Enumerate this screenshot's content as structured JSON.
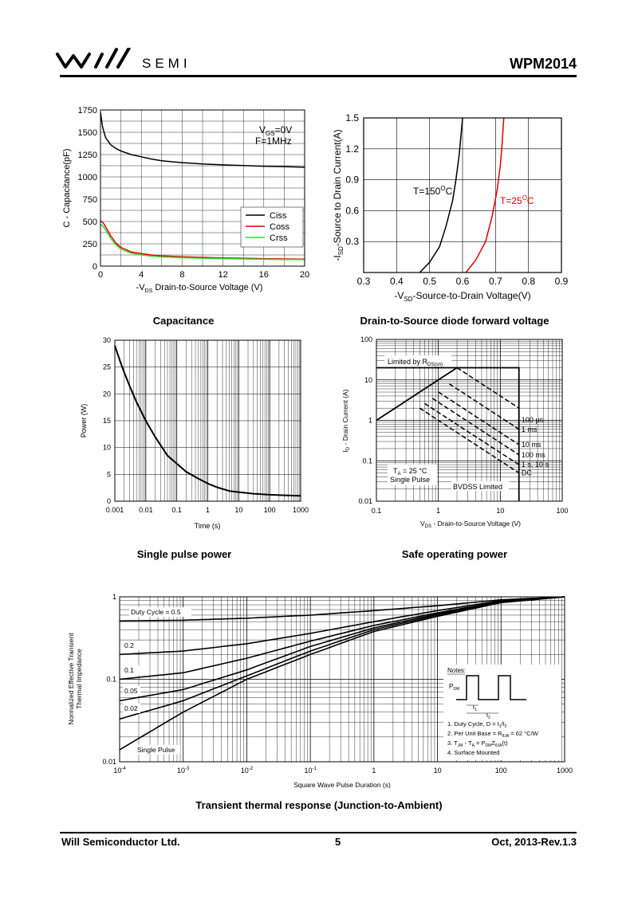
{
  "header": {
    "brand": "SEMI",
    "model": "WPM2014"
  },
  "footer": {
    "company": "Will Semiconductor Ltd.",
    "page": "5",
    "date": "Oct, 2013-Rev.1.3"
  },
  "chart_data": [
    {
      "id": "capacitance",
      "type": "line",
      "caption": "Capacitance",
      "xlabel": "-V_DS Drain-to-Source Voltage (V)",
      "ylabel": "C - Capacitance(pF)",
      "xlim": [
        0,
        20
      ],
      "ylim": [
        0,
        1750
      ],
      "xticks": [
        0,
        4,
        8,
        12,
        16,
        20
      ],
      "yticks": [
        0,
        250,
        500,
        750,
        1000,
        1250,
        1500,
        1750
      ],
      "annotations": [
        "V_GS=0V",
        "F=1MHz"
      ],
      "legend": "bottom-right",
      "series": [
        {
          "name": "Ciss",
          "color": "#000000",
          "x": [
            0,
            0.2,
            0.5,
            1,
            1.5,
            2,
            3,
            4,
            5,
            6,
            7,
            8,
            10,
            12,
            14,
            16,
            18,
            20
          ],
          "y": [
            1720,
            1560,
            1440,
            1360,
            1320,
            1290,
            1250,
            1225,
            1200,
            1180,
            1170,
            1160,
            1145,
            1135,
            1128,
            1120,
            1115,
            1108
          ]
        },
        {
          "name": "Coss",
          "color": "#e00000",
          "x": [
            0,
            0.3,
            0.6,
            1,
            1.5,
            2,
            3,
            4,
            5,
            6,
            8,
            10,
            12,
            14,
            16,
            18,
            20
          ],
          "y": [
            510,
            480,
            420,
            340,
            260,
            210,
            160,
            140,
            125,
            115,
            105,
            98,
            92,
            88,
            84,
            80,
            78
          ]
        },
        {
          "name": "Crss",
          "color": "#33dd33",
          "x": [
            0,
            0.3,
            0.6,
            1,
            1.5,
            2,
            3,
            4,
            5,
            6,
            8,
            10,
            12,
            14,
            16,
            18,
            20
          ],
          "y": [
            470,
            440,
            385,
            310,
            240,
            190,
            145,
            125,
            112,
            104,
            95,
            88,
            84,
            80,
            77,
            74,
            72
          ]
        }
      ]
    },
    {
      "id": "diode",
      "type": "line",
      "caption": "Drain-to-Source diode forward voltage",
      "xlabel": "-V_SD-Source-to-Drain Voltage(V)",
      "ylabel": "-I_SD-Source to Drain Current(A)",
      "xlim": [
        0.3,
        0.9
      ],
      "ylim": [
        0,
        1.5
      ],
      "xticks": [
        0.3,
        0.4,
        0.5,
        0.6,
        0.7,
        0.8,
        0.9
      ],
      "yticks": [
        0.3,
        0.6,
        0.9,
        1.2,
        1.5
      ],
      "series": [
        {
          "name": "T=150°C",
          "color": "#000000",
          "x": [
            0.47,
            0.5,
            0.53,
            0.55,
            0.57,
            0.58,
            0.59,
            0.6
          ],
          "y": [
            0,
            0.1,
            0.25,
            0.45,
            0.7,
            0.9,
            1.15,
            1.5
          ]
        },
        {
          "name": "T=25°C",
          "color": "#e00000",
          "x": [
            0.61,
            0.64,
            0.67,
            0.69,
            0.705,
            0.715,
            0.72,
            0.725
          ],
          "y": [
            0,
            0.12,
            0.3,
            0.55,
            0.8,
            1.05,
            1.25,
            1.5
          ]
        }
      ],
      "labels": [
        "T=150",
        "T=25",
        "O",
        "C"
      ]
    },
    {
      "id": "single-pulse",
      "type": "line",
      "caption": "Single pulse power",
      "xlabel": "Time (s)",
      "ylabel": "Power (W)",
      "xlim": [
        0.001,
        1000
      ],
      "xscale": "log",
      "ylim": [
        0,
        30
      ],
      "xticks": [
        "0.001",
        "0.01",
        "0.1",
        "1",
        "10",
        "100",
        "1000"
      ],
      "yticks": [
        0,
        5,
        10,
        15,
        20,
        25,
        30
      ],
      "series": [
        {
          "name": "Power",
          "color": "#000000",
          "x": [
            0.001,
            0.0015,
            0.002,
            0.003,
            0.005,
            0.01,
            0.02,
            0.05,
            0.1,
            0.2,
            0.5,
            1,
            2,
            5,
            10,
            30,
            100,
            300,
            1000
          ],
          "y": [
            29,
            26,
            24,
            21.5,
            18.5,
            15,
            12,
            8.5,
            7,
            5.5,
            4.2,
            3.3,
            2.6,
            1.9,
            1.7,
            1.4,
            1.2,
            1.1,
            1.0
          ]
        }
      ]
    },
    {
      "id": "soa",
      "type": "line",
      "caption": "Safe operating power",
      "xlabel": "V_DS - Drain-to-Source Voltage (V)",
      "ylabel": "I_D - Drain Current (A)",
      "xlim": [
        0.1,
        100
      ],
      "ylim": [
        0.01,
        100
      ],
      "xscale": "log",
      "yscale": "log",
      "xticks": [
        "0.1",
        "1",
        "10",
        "100"
      ],
      "yticks": [
        "0.01",
        "0.1",
        "1",
        "10",
        "100"
      ],
      "annotations": [
        "Limited by R_DS(on)",
        "T_A = 25 °C",
        "Single Pulse",
        "BVDSS Limited"
      ],
      "series": [
        {
          "name": "100 µs",
          "x": [
            2,
            20
          ],
          "y": [
            20,
            2
          ]
        },
        {
          "name": "1 ms",
          "x": [
            1.5,
            20
          ],
          "y": [
            8,
            0.6
          ]
        },
        {
          "name": "10 ms",
          "x": [
            1,
            20
          ],
          "y": [
            5,
            0.25
          ]
        },
        {
          "name": "100 ms",
          "x": [
            0.8,
            20
          ],
          "y": [
            3.5,
            0.14
          ]
        },
        {
          "name": "1 s, 10 s",
          "x": [
            0.6,
            20
          ],
          "y": [
            2.6,
            0.08
          ]
        },
        {
          "name": "DC",
          "x": [
            0.5,
            20
          ],
          "y": [
            2,
            0.05
          ]
        }
      ]
    },
    {
      "id": "transient",
      "type": "line",
      "caption": "Transient thermal response (Junction-to-Ambient)",
      "xlabel": "Square Wave Pulse Duration (s)",
      "ylabel": "Normalized Effective Transient Thermal Impedance",
      "xlim": [
        0.0001,
        1000
      ],
      "ylim": [
        0.01,
        1
      ],
      "xscale": "log",
      "yscale": "log",
      "yticks": [
        "0.01",
        "0.1",
        "1"
      ],
      "series": [
        {
          "name": "Duty Cycle = 0.5",
          "x": [
            0.0001,
            0.001,
            0.01,
            0.1,
            1,
            10,
            100,
            1000
          ],
          "y": [
            0.51,
            0.52,
            0.55,
            0.6,
            0.68,
            0.78,
            0.92,
            1.0
          ]
        },
        {
          "name": "0.2",
          "x": [
            0.0001,
            0.001,
            0.01,
            0.1,
            1,
            10,
            100,
            1000
          ],
          "y": [
            0.2,
            0.22,
            0.27,
            0.36,
            0.5,
            0.68,
            0.9,
            1.0
          ]
        },
        {
          "name": "0.1",
          "x": [
            0.0001,
            0.001,
            0.01,
            0.1,
            1,
            10,
            100,
            1000
          ],
          "y": [
            0.1,
            0.12,
            0.18,
            0.29,
            0.45,
            0.64,
            0.88,
            1.0
          ]
        },
        {
          "name": "0.05",
          "x": [
            0.0001,
            0.001,
            0.01,
            0.1,
            1,
            10,
            100,
            1000
          ],
          "y": [
            0.055,
            0.075,
            0.13,
            0.25,
            0.42,
            0.62,
            0.87,
            1.0
          ]
        },
        {
          "name": "0.02",
          "x": [
            0.0001,
            0.001,
            0.01,
            0.1,
            1,
            10,
            100,
            1000
          ],
          "y": [
            0.033,
            0.055,
            0.11,
            0.22,
            0.4,
            0.6,
            0.86,
            1.0
          ]
        },
        {
          "name": "Single Pulse",
          "x": [
            0.0001,
            0.001,
            0.01,
            0.1,
            1,
            10,
            100,
            1000
          ],
          "y": [
            0.014,
            0.04,
            0.1,
            0.2,
            0.38,
            0.58,
            0.85,
            1.0
          ]
        }
      ],
      "notes": [
        "Notes:",
        "1. Duty Cycle, D = t1/t2",
        "2. Per Unit Base = RθJA = 62 °C/W",
        "3. TJM - TA = PDM ZθJA(t)",
        "4. Surface Mounted"
      ]
    }
  ]
}
